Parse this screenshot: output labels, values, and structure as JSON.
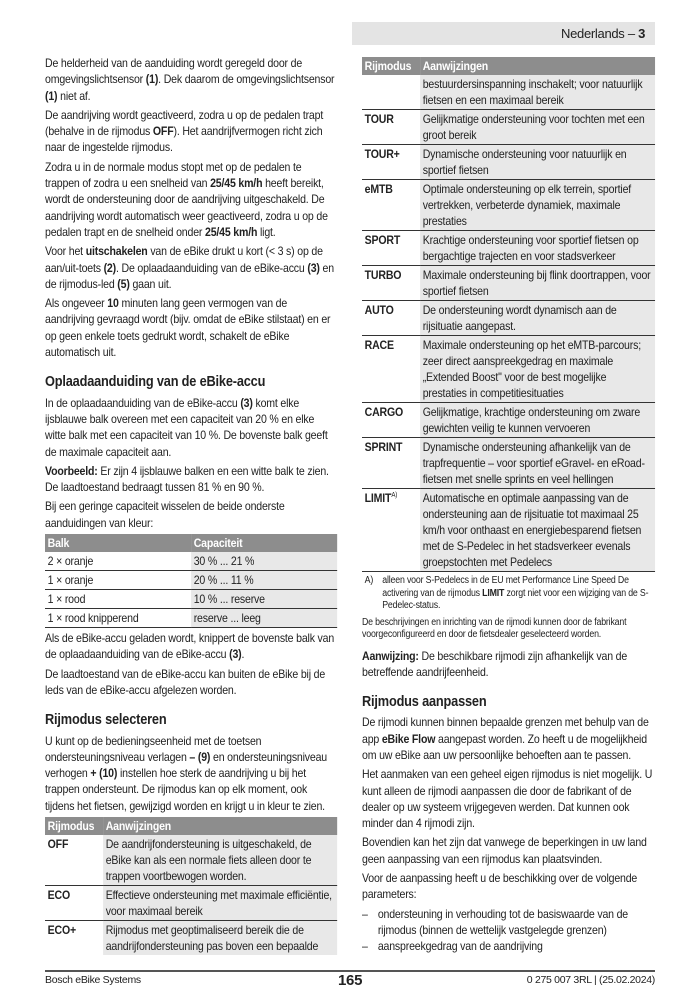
{
  "header": {
    "language": "Nederlands – ",
    "page_section": "3"
  },
  "left": {
    "blocks": [
      {
        "type": "p",
        "segs": [
          {
            "t": "De helderheid van de aanduiding wordt geregeld door de omgevingslichtsensor "
          },
          {
            "t": "(1)",
            "b": true
          },
          {
            "t": ". Dek daarom de omgevingslichtsensor "
          },
          {
            "t": "(1)",
            "b": true
          },
          {
            "t": " niet af."
          }
        ]
      },
      {
        "type": "p",
        "segs": [
          {
            "t": "De aandrijving wordt geactiveerd, zodra u op de pedalen trapt (behalve in de rijmodus "
          },
          {
            "t": "OFF",
            "b": true
          },
          {
            "t": "). Het aandrijfvermogen richt zich naar de ingestelde rijmodus."
          }
        ]
      },
      {
        "type": "p",
        "segs": [
          {
            "t": "Zodra u in de normale modus stopt met op de pedalen te trappen of zodra u een snelheid van "
          },
          {
            "t": "25/45 km/h",
            "b": true
          },
          {
            "t": " heeft bereikt, wordt de ondersteuning door de aandrijving uitgeschakeld. De aandrijving wordt automatisch weer geactiveerd, zodra u op de pedalen trapt en de snelheid onder "
          },
          {
            "t": "25/45 km/h",
            "b": true
          },
          {
            "t": " ligt."
          }
        ]
      },
      {
        "type": "p",
        "segs": [
          {
            "t": "Voor het "
          },
          {
            "t": "uitschakelen",
            "b": true
          },
          {
            "t": " van de eBike drukt u kort (< 3 s) op de aan/uit-toets "
          },
          {
            "t": "(2)",
            "b": true
          },
          {
            "t": ". De oplaadaanduiding van de eBike-accu "
          },
          {
            "t": "(3)",
            "b": true
          },
          {
            "t": " en de rijmodus-led "
          },
          {
            "t": "(5)",
            "b": true
          },
          {
            "t": " gaan uit."
          }
        ]
      },
      {
        "type": "p",
        "segs": [
          {
            "t": "Als ongeveer "
          },
          {
            "t": "10",
            "b": true
          },
          {
            "t": " minuten lang geen vermogen van de aandrijving gevraagd wordt (bijv. omdat de eBike stilstaat) en er op geen enkele toets gedrukt wordt, schakelt de eBike automatisch uit."
          }
        ]
      },
      {
        "type": "h",
        "text": "Oplaadaanduiding van de eBike-accu"
      },
      {
        "type": "p",
        "segs": [
          {
            "t": "In de oplaadaanduiding van de eBike-accu "
          },
          {
            "t": "(3)",
            "b": true
          },
          {
            "t": " komt elke ijsblauwe balk overeen met een capaciteit van 20 % en elke witte balk met een capaciteit van 10 %. De bovenste balk geeft de maximale capaciteit aan."
          }
        ]
      },
      {
        "type": "p",
        "segs": [
          {
            "t": "Voorbeeld:",
            "b": true
          },
          {
            "t": " Er zijn 4 ijsblauwe balken en een witte balk te zien. De laadtoestand bedraagt tussen 81 % en 90 %."
          }
        ]
      },
      {
        "type": "p",
        "segs": [
          {
            "t": "Bij een geringe capaciteit wisselen de beide onderste aanduidingen van kleur:"
          }
        ]
      },
      {
        "type": "table",
        "kind": "bat",
        "headers": [
          "Balk",
          "Capaciteit"
        ],
        "rows": [
          {
            "c1": "2 × oranje",
            "c2": "30 % ... 21 %"
          },
          {
            "c1": "1 × oranje",
            "c2": "20 % ... 11 %"
          },
          {
            "c1": "1 × rood",
            "c2": "10 % ... reserve"
          },
          {
            "c1": "1 × rood knipperend",
            "c2": "reserve ... leeg"
          }
        ]
      },
      {
        "type": "p",
        "segs": [
          {
            "t": "Als de eBike-accu geladen wordt, knippert de bovenste balk van de oplaadaanduiding van de eBike-accu "
          },
          {
            "t": "(3)",
            "b": true
          },
          {
            "t": "."
          }
        ]
      },
      {
        "type": "p",
        "segs": [
          {
            "t": "De laadtoestand van de eBike-accu kan buiten de eBike bij de leds van de eBike-accu afgelezen worden."
          }
        ]
      },
      {
        "type": "h",
        "text": "Rijmodus selecteren"
      },
      {
        "type": "p",
        "segs": [
          {
            "t": "U kunt op de bedieningseenheid met de toetsen ondersteuningsniveau verlagen "
          },
          {
            "t": "– (9)",
            "b": true
          },
          {
            "t": " en ondersteuningsniveau verhogen "
          },
          {
            "t": "+ (10)",
            "b": true
          },
          {
            "t": " instellen hoe sterk de aandrijving u bij het trappen ondersteunt. De rijmodus kan op elk moment, ook tijdens het fietsen, gewijzigd worden en krijgt u in kleur te zien."
          }
        ]
      },
      {
        "type": "table",
        "kind": "mode",
        "headers": [
          "Rijmodus",
          "Aanwijzingen"
        ],
        "rows": [
          {
            "c1": "OFF",
            "c2": "De aandrijfondersteuning is uitgeschakeld, de eBike kan als een normale fiets alleen door te trappen voortbewogen worden."
          },
          {
            "c1": "ECO",
            "c2": "Effectieve ondersteuning met maximale efficiëntie, voor maximaal bereik"
          },
          {
            "c1": "ECO+",
            "c2": "Rijmodus met geoptimaliseerd bereik die de aandrijfondersteuning pas boven een bepaalde",
            "nob": true
          }
        ]
      }
    ]
  },
  "right": {
    "blocks": [
      {
        "type": "table",
        "kind": "mode",
        "headers": [
          "Rijmodus",
          "Aanwijzingen"
        ],
        "rows": [
          {
            "c1": "",
            "c2": "bestuurdersinspanning inschakelt; voor natuurlijk fietsen en een maximaal bereik"
          },
          {
            "c1": "TOUR",
            "c2": "Gelijkmatige ondersteuning voor tochten met een groot bereik"
          },
          {
            "c1": "TOUR+",
            "c2": "Dynamische ondersteuning voor natuurlijk en sportief fietsen"
          },
          {
            "c1": "eMTB",
            "c2": "Optimale ondersteuning op elk terrein, sportief vertrekken, verbeterde dynamiek, maximale prestaties"
          },
          {
            "c1": "SPORT",
            "c2": "Krachtige ondersteuning voor sportief fietsen op bergachtige trajecten en voor stadsverkeer"
          },
          {
            "c1": "TURBO",
            "c2": "Maximale ondersteuning bij flink doortrappen, voor sportief fietsen"
          },
          {
            "c1": "AUTO",
            "c2": "De ondersteuning wordt dynamisch aan de rijsituatie aangepast."
          },
          {
            "c1": "RACE",
            "c2": "Maximale ondersteuning op het eMTB-parcours; zeer direct aanspreekgedrag en maximale „Extended Boost\" voor de best mogelijke prestaties in competitiesituaties"
          },
          {
            "c1": "CARGO",
            "c2": "Gelijkmatige, krachtige ondersteuning om zware gewichten veilig te kunnen vervoeren"
          },
          {
            "c1": "SPRINT",
            "c2": "Dynamische ondersteuning afhankelijk van de trapfrequentie – voor sportief eGravel- en eRoad-fietsen met snelle sprints en veel hellingen"
          },
          {
            "c1": "LIMIT",
            "sup": "A)",
            "c2": "Automatische en optimale aanpassing van de ondersteuning aan de rijsituatie tot maximaal 25 km/h voor onthaast en energiebesparend fietsen met de S-Pedelec in het stadsverkeer evenals groepstochten met Pedelecs"
          }
        ]
      },
      {
        "type": "fn",
        "label": "A)",
        "segs": [
          {
            "t": "alleen voor S-Pedelecs in de EU met Performance Line Speed De activering van de rijmodus "
          },
          {
            "t": "LIMIT",
            "b": true
          },
          {
            "t": " zorgt niet voor een wijziging van de S-Pedelec-status."
          }
        ]
      },
      {
        "type": "small",
        "segs": [
          {
            "t": "De beschrijvingen en inrichting van de rijmodi kunnen door de fabrikant voorgeconfigureerd en door de fietsdealer geselecteerd worden."
          }
        ]
      },
      {
        "type": "p",
        "segs": [
          {
            "t": "Aanwijzing:",
            "b": true
          },
          {
            "t": " De beschikbare rijmodi zijn afhankelijk van de betreffende aandrijfeenheid."
          }
        ]
      },
      {
        "type": "h",
        "text": "Rijmodus aanpassen"
      },
      {
        "type": "p",
        "segs": [
          {
            "t": "De rijmodi kunnen binnen bepaalde grenzen met behulp van de app "
          },
          {
            "t": "eBike Flow",
            "b": true
          },
          {
            "t": " aangepast worden. Zo heeft u de mogelijkheid om uw eBike aan uw persoonlijke behoeften aan te passen."
          }
        ]
      },
      {
        "type": "p",
        "segs": [
          {
            "t": "Het aanmaken van een geheel eigen rijmodus is niet mogelijk. U kunt alleen de rijmodi aanpassen die door de fabrikant of de dealer op uw systeem vrijgegeven werden. Dat kunnen ook minder dan 4 rijmodi zijn."
          }
        ]
      },
      {
        "type": "p",
        "segs": [
          {
            "t": "Bovendien kan het zijn dat vanwege de beperkingen in uw land geen aanpassing van een rijmodus kan plaatsvinden."
          }
        ]
      },
      {
        "type": "p",
        "segs": [
          {
            "t": "Voor de aanpassing heeft u de beschikking over de volgende parameters:"
          }
        ]
      },
      {
        "type": "list",
        "items": [
          "ondersteuning in verhouding tot de basiswaarde van de rijmodus (binnen de wettelijk vastgelegde grenzen)",
          "aanspreekgedrag van de aandrijving"
        ]
      }
    ]
  },
  "footer": {
    "brand": "Bosch eBike Systems",
    "page_number": "165",
    "doc_id": "0 275 007 3RL | (25.02.2024)"
  }
}
